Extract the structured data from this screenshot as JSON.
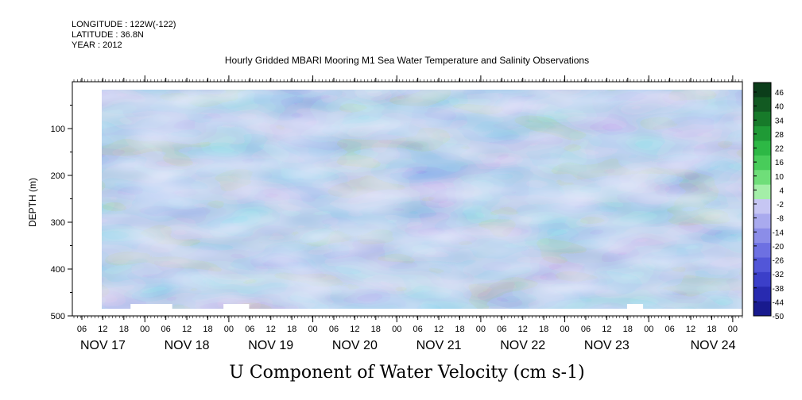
{
  "header": {
    "longitude": "LONGITUDE : 122W(-122)",
    "latitude": "LATITUDE : 36.8N",
    "year": "YEAR : 2012"
  },
  "colors": {
    "frame": "#000000",
    "background": "#ffffff"
  },
  "chart_data": {
    "type": "heatmap",
    "title": "Hourly Gridded MBARI Mooring M1 Sea Water Temperature and Salinity Observations",
    "xlabel": "U Component of Water Velocity (cm s-1)",
    "ylabel": "DEPTH (m)",
    "y_reversed": true,
    "ylim": [
      500,
      0
    ],
    "y_ticks": [
      100,
      200,
      300,
      400,
      500
    ],
    "x_hour_ticks": [
      "06",
      "12",
      "18",
      "00",
      "06",
      "12",
      "18",
      "00",
      "06",
      "12",
      "18",
      "00",
      "06",
      "12",
      "18",
      "00",
      "06",
      "12",
      "18",
      "00",
      "06",
      "12",
      "18",
      "00",
      "06",
      "12",
      "18",
      "00",
      "06",
      "12",
      "18",
      "00"
    ],
    "x_day_labels": [
      "NOV 17",
      "NOV 18",
      "NOV 19",
      "NOV 20",
      "NOV 21",
      "NOV 22",
      "NOV 23",
      "NOV 24"
    ],
    "colorbar": {
      "levels": [
        46,
        40,
        34,
        28,
        22,
        16,
        10,
        4,
        -2,
        -8,
        -14,
        -20,
        -26,
        -32,
        -38,
        -44,
        -50
      ],
      "colors": [
        "#0b3d1a",
        "#125a22",
        "#177a2a",
        "#1f9a36",
        "#2db845",
        "#48cc5a",
        "#6fde79",
        "#a4eea8",
        "#c6c6f3",
        "#a9aaee",
        "#8b8de8",
        "#6d70e2",
        "#5256d8",
        "#3b3fc9",
        "#282ab0",
        "#181a8e",
        "#0a0c66"
      ]
    },
    "data_start_depth": 20,
    "data_end_depth": 485,
    "missing_bottom_segments": [
      [
        0.045,
        0.11
      ],
      [
        0.19,
        0.23
      ],
      [
        0.82,
        0.845
      ]
    ]
  }
}
